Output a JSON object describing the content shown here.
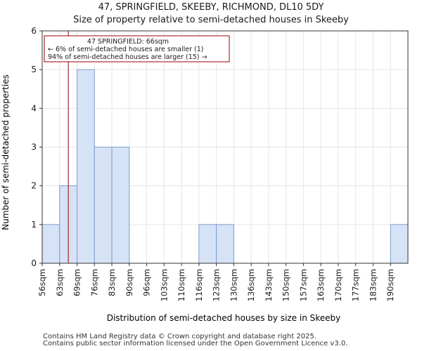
{
  "chart_data": {
    "type": "bar",
    "title": "47, SPRINGFIELD, SKEEBY, RICHMOND, DL10 5DY",
    "subtitle": "Size of property relative to semi-detached houses in Skeeby",
    "xlabel": "Distribution of semi-detached houses by size in Skeeby",
    "ylabel": "Number of semi-detached properties",
    "categories": [
      "56sqm",
      "63sqm",
      "69sqm",
      "76sqm",
      "83sqm",
      "90sqm",
      "96sqm",
      "103sqm",
      "110sqm",
      "116sqm",
      "123sqm",
      "130sqm",
      "136sqm",
      "143sqm",
      "150sqm",
      "157sqm",
      "163sqm",
      "170sqm",
      "177sqm",
      "183sqm",
      "190sqm"
    ],
    "values": [
      1,
      2,
      5,
      3,
      3,
      0,
      0,
      0,
      0,
      1,
      1,
      0,
      0,
      0,
      0,
      0,
      0,
      0,
      0,
      0,
      1
    ],
    "ylim": [
      0,
      6
    ],
    "yticks": [
      0,
      1,
      2,
      3,
      4,
      5,
      6
    ],
    "bar_color": "#d6e2f5",
    "bar_edge_color": "#7f9fcf",
    "marker": {
      "value_index": 1.5,
      "color": "#9b0000",
      "lines": [
        "47 SPRINGFIELD: 66sqm",
        "← 6% of semi-detached houses are smaller (1)",
        "94% of semi-detached houses are larger (15) →"
      ]
    }
  },
  "footer": {
    "line1": "Contains HM Land Registry data © Crown copyright and database right 2025.",
    "line2": "Contains public sector information licensed under the Open Government Licence v3.0."
  }
}
